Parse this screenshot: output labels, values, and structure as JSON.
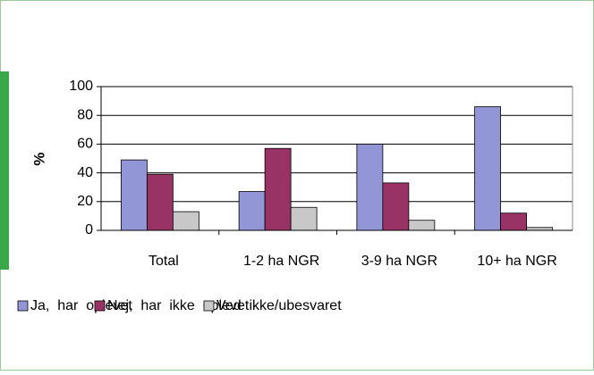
{
  "chart_data": {
    "type": "bar",
    "categories": [
      "Total",
      "1-2  ha  NGR",
      "3-9  ha  NGR",
      "10+  ha  NGR"
    ],
    "series": [
      {
        "name": "Ja,  har  oplevet",
        "color": "#9296d6",
        "values": [
          49,
          27,
          60,
          86
        ]
      },
      {
        "name": "Nej,  har  ikke  oplevet",
        "color": "#993366",
        "values": [
          39,
          57,
          33,
          12
        ]
      },
      {
        "name": "Ved  ikke/ubesvaret",
        "color": "#c8c8c8",
        "values": [
          13,
          16,
          7,
          2
        ]
      }
    ],
    "ylabel": "%",
    "ylim": [
      0,
      100
    ],
    "yticks": [
      0,
      20,
      40,
      60,
      80,
      100
    ],
    "grid": true
  }
}
